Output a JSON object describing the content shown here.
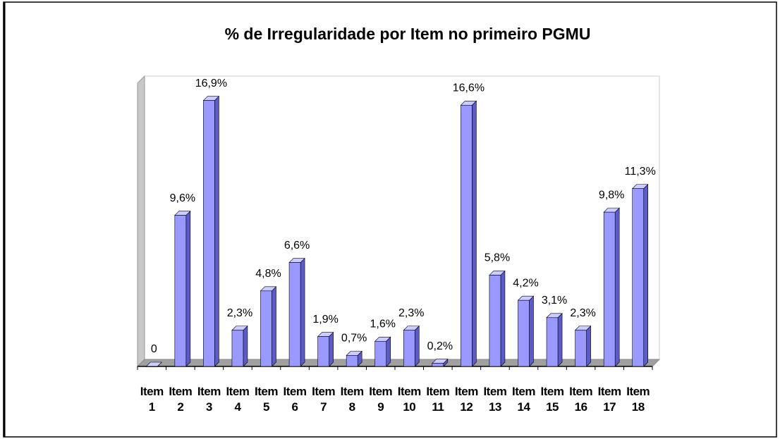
{
  "chart_data": {
    "type": "bar",
    "title": "% de Irregularidade por Item no primeiro PGMU",
    "categories": [
      "Item 1",
      "Item 2",
      "Item 3",
      "Item 4",
      "Item 5",
      "Item 6",
      "Item 7",
      "Item 8",
      "Item 9",
      "Item 10",
      "Item 11",
      "Item 12",
      "Item 13",
      "Item 14",
      "Item 15",
      "Item 16",
      "Item 17",
      "Item 18"
    ],
    "values": [
      0,
      9.6,
      16.9,
      2.3,
      4.8,
      6.6,
      1.9,
      0.7,
      1.6,
      2.3,
      0.2,
      16.6,
      5.8,
      4.2,
      3.1,
      2.3,
      9.8,
      11.3
    ],
    "value_labels": [
      "0",
      "9,6%",
      "16,9%",
      "2,3%",
      "4,8%",
      "6,6%",
      "1,9%",
      "0,7%",
      "1,6%",
      "2,3%",
      "0,2%",
      "16,6%",
      "5,8%",
      "4,2%",
      "3,1%",
      "2,3%",
      "9,8%",
      "11,3%"
    ],
    "color": "#9999ff",
    "ylim": [
      0,
      18
    ]
  }
}
